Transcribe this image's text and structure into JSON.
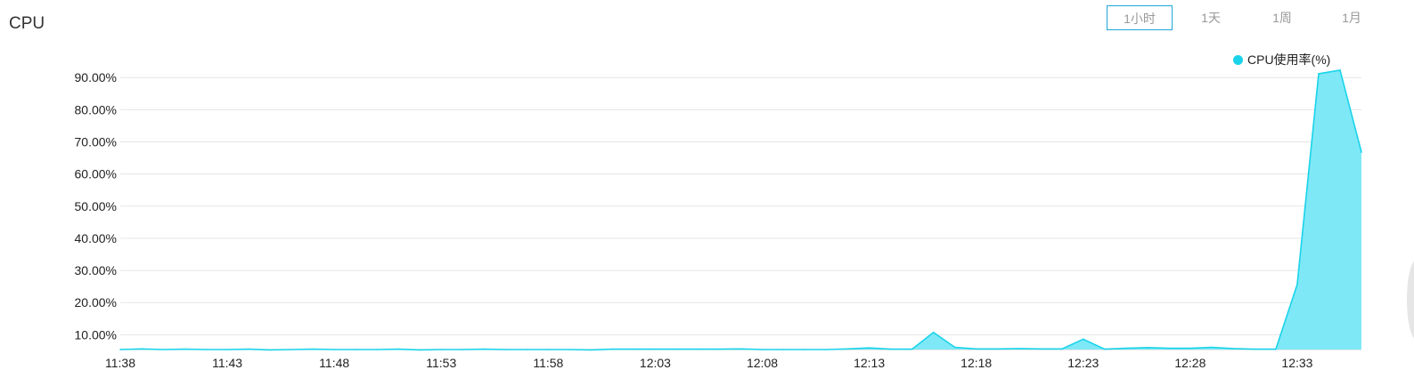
{
  "panel": {
    "title": "CPU"
  },
  "range_tabs": [
    {
      "label": "1小时",
      "active": true
    },
    {
      "label": "1天",
      "active": false
    },
    {
      "label": "1周",
      "active": false
    },
    {
      "label": "1月",
      "active": false
    }
  ],
  "colors": {
    "series": "#19d3ea",
    "fill": "#7fe8f6",
    "active_tab_border": "#1ea7d6",
    "grid": "#e5e5e5"
  },
  "chart_data": {
    "type": "area",
    "title": "CPU",
    "xlabel": "",
    "ylabel": "",
    "ylim": [
      5.4,
      92
    ],
    "grid": true,
    "legend_placement": "top-right",
    "y_ticks": [
      "10.00%",
      "20.00%",
      "30.00%",
      "40.00%",
      "50.00%",
      "60.00%",
      "70.00%",
      "80.00%",
      "90.00%"
    ],
    "y_tick_values": [
      10,
      20,
      30,
      40,
      50,
      60,
      70,
      80,
      90
    ],
    "x_ticks": [
      "11:38",
      "11:43",
      "11:48",
      "11:53",
      "11:58",
      "12:03",
      "12:08",
      "12:13",
      "12:18",
      "12:23",
      "12:28",
      "12:33"
    ],
    "x_tick_minutes": [
      0,
      5,
      10,
      15,
      20,
      25,
      30,
      35,
      40,
      45,
      50,
      55
    ],
    "series": [
      {
        "name": "CPU使用率(%)",
        "x": [
          0,
          1,
          2,
          3,
          4,
          5,
          6,
          7,
          8,
          9,
          10,
          11,
          12,
          13,
          14,
          15,
          16,
          17,
          18,
          19,
          20,
          21,
          22,
          23,
          24,
          25,
          26,
          27,
          28,
          29,
          30,
          31,
          32,
          33,
          34,
          35,
          36,
          37,
          38,
          39,
          40,
          41,
          42,
          43,
          44,
          45,
          46,
          47,
          48,
          49,
          50,
          51,
          52,
          53,
          54,
          55,
          56,
          57,
          58
        ],
        "values": [
          5.4,
          5.6,
          5.4,
          5.5,
          5.4,
          5.4,
          5.5,
          5.3,
          5.4,
          5.5,
          5.4,
          5.4,
          5.4,
          5.5,
          5.3,
          5.4,
          5.4,
          5.5,
          5.4,
          5.4,
          5.4,
          5.4,
          5.3,
          5.5,
          5.5,
          5.5,
          5.5,
          5.5,
          5.5,
          5.6,
          5.4,
          5.4,
          5.4,
          5.4,
          5.6,
          5.9,
          5.5,
          5.5,
          10.7,
          6.1,
          5.6,
          5.6,
          5.7,
          5.6,
          5.6,
          8.6,
          5.5,
          5.8,
          6.0,
          5.8,
          5.8,
          6.1,
          5.7,
          5.5,
          5.5,
          25.6,
          91.2,
          92.3,
          66.8
        ]
      }
    ]
  }
}
